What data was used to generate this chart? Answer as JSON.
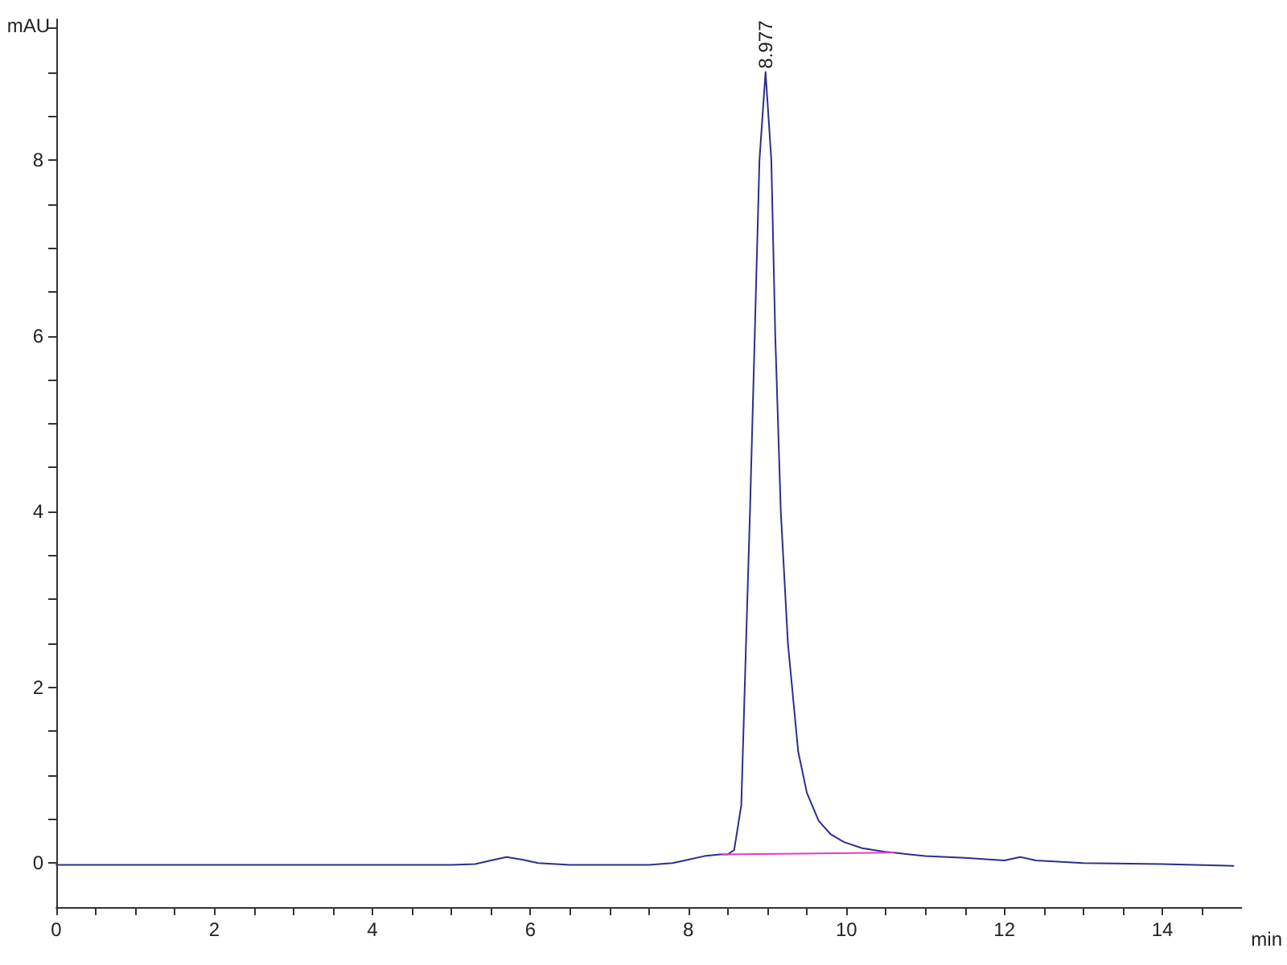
{
  "chart_data": {
    "type": "line",
    "xlabel": "min",
    "ylabel": "mAU",
    "series": [
      {
        "color": "#2e2e8a",
        "x": [
          0,
          1,
          2,
          3,
          4,
          5,
          5.3,
          5.5,
          5.7,
          5.9,
          6.1,
          6.5,
          7,
          7.5,
          7.8,
          8.0,
          8.2,
          8.4,
          8.5,
          8.58,
          8.67,
          8.73,
          8.78,
          8.84,
          8.9,
          8.977,
          9.05,
          9.1,
          9.17,
          9.26,
          9.39,
          9.5,
          9.65,
          9.8,
          9.97,
          10.2,
          10.49,
          10.6,
          10.8,
          11,
          11.5,
          12,
          12.2,
          12.4,
          13,
          14,
          14.9
        ],
        "values": [
          -0.02,
          -0.02,
          -0.02,
          -0.02,
          -0.02,
          -0.02,
          -0.01,
          0.03,
          0.07,
          0.04,
          0,
          -0.02,
          -0.02,
          -0.02,
          0,
          0.04,
          0.08,
          0.1,
          0.1,
          0.15,
          0.66,
          2.5,
          4,
          6,
          8,
          9.0,
          8,
          6,
          4,
          2.5,
          1.27,
          0.8,
          0.48,
          0.33,
          0.24,
          0.17,
          0.13,
          0.12,
          0.1,
          0.08,
          0.06,
          0.03,
          0.07,
          0.03,
          0,
          -0.01,
          -0.03
        ]
      },
      {
        "color": "#e040c0",
        "x": [
          8.43,
          10.6
        ],
        "values": [
          0.1,
          0.12
        ]
      }
    ],
    "annotations": [
      {
        "text": "8.977",
        "x": 8.977,
        "y": 9.0
      }
    ],
    "xlim": [
      0,
      15
    ],
    "ylim": [
      -0.5,
      9.6
    ],
    "xticks": [
      0,
      {
        "value": 0.5,
        "label": null
      },
      {
        "value": 1,
        "label": null
      },
      {
        "value": 1.5,
        "label": null
      },
      2,
      {
        "value": 2.5,
        "label": null
      },
      {
        "value": 3,
        "label": null
      },
      {
        "value": 3.5,
        "label": null
      },
      4,
      {
        "value": 4.5,
        "label": null
      },
      {
        "value": 5,
        "label": null
      },
      {
        "value": 5.5,
        "label": null
      },
      6,
      {
        "value": 6.5,
        "label": null
      },
      {
        "value": 7,
        "label": null
      },
      {
        "value": 7.5,
        "label": null
      },
      8,
      {
        "value": 8.5,
        "label": null
      },
      {
        "value": 9,
        "label": null
      },
      {
        "value": 9.5,
        "label": null
      },
      10,
      {
        "value": 10.5,
        "label": null
      },
      {
        "value": 11,
        "label": null
      },
      {
        "value": 11.5,
        "label": null
      },
      12,
      {
        "value": 12.5,
        "label": null
      },
      {
        "value": 13,
        "label": null
      },
      {
        "value": 13.5,
        "label": null
      },
      14,
      {
        "value": 14.5,
        "label": null
      }
    ],
    "yticks": [
      0,
      {
        "value": 0.5,
        "label": null
      },
      {
        "value": 1,
        "label": null
      },
      {
        "value": 1.5,
        "label": null
      },
      2,
      {
        "value": 2.5,
        "label": null
      },
      {
        "value": 3,
        "label": null
      },
      {
        "value": 3.5,
        "label": null
      },
      4,
      {
        "value": 4.5,
        "label": null
      },
      {
        "value": 5,
        "label": null
      },
      {
        "value": 5.5,
        "label": null
      },
      6,
      {
        "value": 6.5,
        "label": null
      },
      {
        "value": 7,
        "label": null
      },
      {
        "value": 7.5,
        "label": null
      },
      8,
      {
        "value": 8.5,
        "label": null
      },
      {
        "value": 9,
        "label": null
      },
      {
        "value": 9.5,
        "label": null
      }
    ],
    "grid": false,
    "marker": "none",
    "line_style": "solid"
  }
}
